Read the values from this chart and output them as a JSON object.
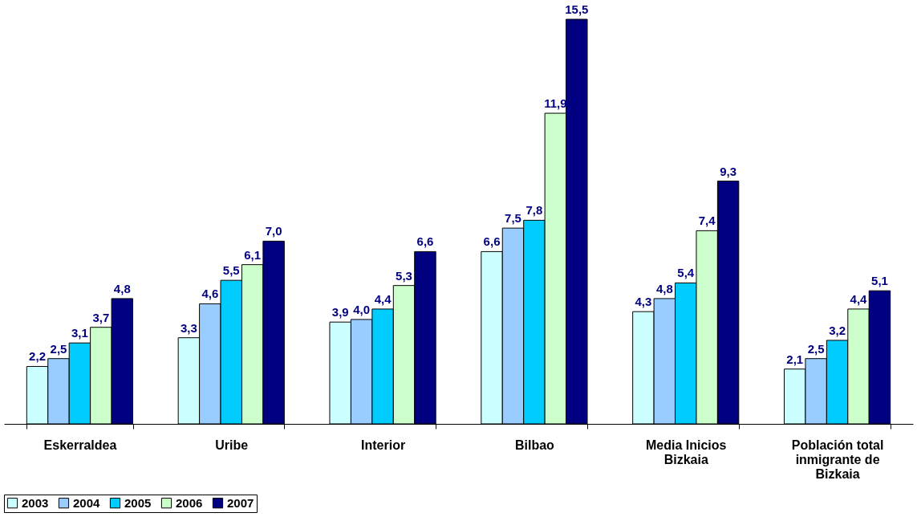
{
  "chart_data": {
    "type": "bar",
    "categories": [
      "Eskerraldea",
      "Uribe",
      "Interior",
      "Bilbao",
      "Media Inicios Bizkaia",
      "Población total inmigrante de Bizkaia"
    ],
    "series": [
      {
        "name": "2003",
        "color": "#ccffff",
        "values": [
          2.2,
          3.3,
          3.9,
          6.6,
          4.3,
          2.1
        ],
        "value_labels": [
          "2,2",
          "3,3",
          "3,9",
          "6,6",
          "4,3",
          "2,1"
        ]
      },
      {
        "name": "2004",
        "color": "#99ccff",
        "values": [
          2.5,
          4.6,
          4.0,
          7.5,
          4.8,
          2.5
        ],
        "value_labels": [
          "2,5",
          "4,6",
          "4,0",
          "7,5",
          "4,8",
          "2,5"
        ]
      },
      {
        "name": "2005",
        "color": "#00ccff",
        "values": [
          3.1,
          5.5,
          4.4,
          7.8,
          5.4,
          3.2
        ],
        "value_labels": [
          "3,1",
          "5,5",
          "4,4",
          "7,8",
          "5,4",
          "3,2"
        ]
      },
      {
        "name": "2006",
        "color": "#ccffcc",
        "values": [
          3.7,
          6.1,
          5.3,
          11.9,
          7.4,
          4.4
        ],
        "value_labels": [
          "3,7",
          "6,1",
          "5,3",
          "11,9",
          "7,4",
          "4,4"
        ]
      },
      {
        "name": "2007",
        "color": "#000080",
        "values": [
          4.8,
          7.0,
          6.6,
          15.5,
          9.3,
          5.1
        ],
        "value_labels": [
          "4,8",
          "7,0",
          "6,6",
          "15,5",
          "9,3",
          "5,1"
        ]
      }
    ],
    "legend": "bottom",
    "grid": false
  }
}
